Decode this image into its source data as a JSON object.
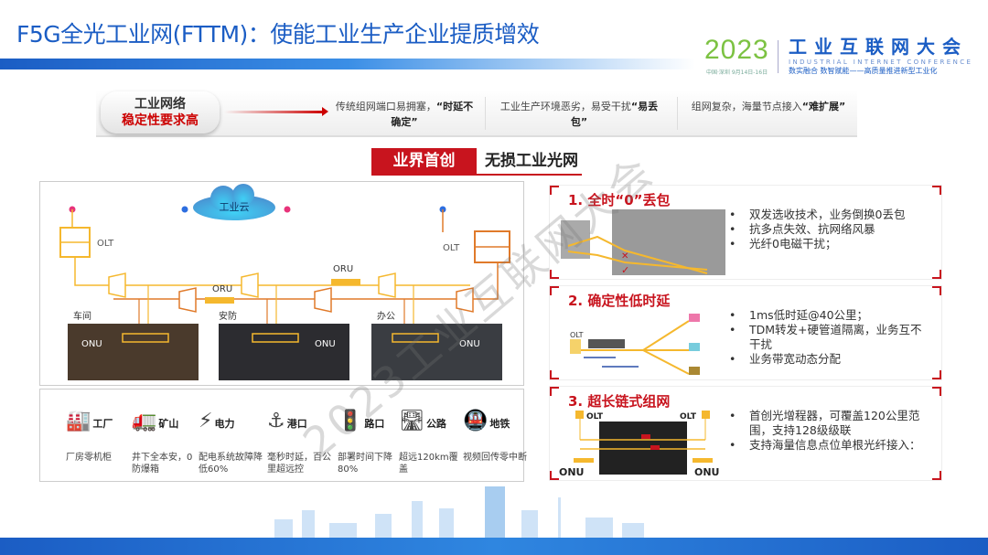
{
  "header": {
    "title": "F5G全光工业网(FTTM)：使能工业生产企业提质增效",
    "logo": {
      "year": "2023",
      "name": "工业互联网大会",
      "english": "INDUSTRIAL INTERNET CONFERENCE",
      "slogan": "数实融合 数智赋能——高质量推进新型工业化",
      "date": "中国·深圳 9月14日-16日"
    }
  },
  "problem": {
    "label_line1": "工业网络",
    "label_line2": "稳定性要求高",
    "items": [
      {
        "text": "传统组网端口易拥塞，",
        "bold": "“时延不确定”"
      },
      {
        "text": "工业生产环境恶劣，易受干扰",
        "bold": "“易丢包”"
      },
      {
        "text": "组网复杂，海量节点接入",
        "bold": "“难扩展”"
      }
    ]
  },
  "headline": {
    "badge": "业界首创",
    "title": "无损工业光网"
  },
  "diagram": {
    "cloud": "工业云",
    "olt_left": "OLT",
    "olt_right": "OLT",
    "oru_top": "ORU",
    "oru_mid": "ORU",
    "scenes": [
      {
        "name": "车间",
        "onu": "ONU"
      },
      {
        "name": "安防",
        "onu": "ONU"
      },
      {
        "name": "办公",
        "onu": "ONU"
      }
    ]
  },
  "industries": [
    {
      "icon": "factory-icon",
      "glyph": "🏭",
      "name": "工厂",
      "desc": "厂房零机柜"
    },
    {
      "icon": "mining-truck-icon",
      "glyph": "🚛",
      "name": "矿山",
      "desc": "井下全本安，0防爆箱"
    },
    {
      "icon": "power-pole-icon",
      "glyph": "⚡",
      "name": "电力",
      "desc": "配电系统故障降低60%"
    },
    {
      "icon": "port-ship-icon",
      "glyph": "⚓",
      "name": "港口",
      "desc": "毫秒时延，百公里超远控"
    },
    {
      "icon": "intersection-icon",
      "glyph": "🚦",
      "name": "路口",
      "desc": "部署时间下降80%"
    },
    {
      "icon": "highway-icon",
      "glyph": "🛣",
      "name": "公路",
      "desc": "超远120km覆盖"
    },
    {
      "icon": "subway-icon",
      "glyph": "🚇",
      "name": "地铁",
      "desc": "视频回传零中断"
    }
  ],
  "features": [
    {
      "title": "1. 全时“0”丢包",
      "bullets": [
        "双发选收技术，业务倒换0丢包",
        "抗多点失效、抗网络风暴",
        "光纤0电磁干扰；"
      ]
    },
    {
      "title": "2. 确定性低时延",
      "bullets": [
        "1ms低时延@40公里；",
        "TDM转发+硬管道隔离，业务互不干扰",
        "业务带宽动态分配"
      ],
      "img_olt": "OLT"
    },
    {
      "title": "3. 超长链式组网",
      "bullets": [
        "首创光增程器，可覆盖120公里范围，支持128级级联",
        "支持海量信息点位单根光纤接入："
      ],
      "img_olt_l": "OLT",
      "img_olt_r": "OLT",
      "img_onu_l": "ONU",
      "img_onu_r": "ONU"
    }
  ],
  "watermark": "2023工业互联网大会",
  "colors": {
    "brand_blue": "#1b5dc4",
    "accent_red": "#c8141e",
    "fiber_yellow": "#f5b82e",
    "fiber_orange": "#e07a2a",
    "logo_green": "#7cc242"
  }
}
